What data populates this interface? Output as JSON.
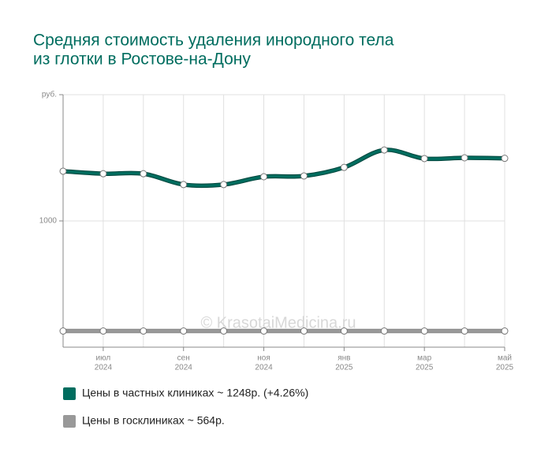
{
  "chart_data": {
    "type": "line",
    "title": [
      "Средняя стоимость удаления инородного тела",
      "из глотки в Ростове-на-Дону"
    ],
    "categories": [
      null,
      "июл",
      null,
      "сен",
      null,
      "ноя",
      null,
      "янв",
      null,
      "мар",
      null,
      "май"
    ],
    "category_years": [
      null,
      "2024",
      null,
      "2024",
      null,
      "2024",
      null,
      "2025",
      null,
      "2025",
      null,
      "2025"
    ],
    "series": [
      {
        "name": "Цены в частных клиниках ~ 1248р. (+4.26%)",
        "color": "#006d5f",
        "values": [
          1197,
          1187,
          1187,
          1144,
          1144,
          1175,
          1178,
          1212,
          1281,
          1247,
          1250,
          1248
        ]
      },
      {
        "name": "Цены в госклиниках ~ 564р.",
        "color": "#999999",
        "values": [
          564,
          564,
          564,
          564,
          564,
          564,
          564,
          564,
          564,
          564,
          564,
          564
        ]
      }
    ],
    "ylim": [
      500,
      1500
    ],
    "yticks": [
      1000,
      {
        "value": 1500,
        "label": "руб."
      }
    ],
    "grid": true,
    "watermark": "© KrasotaiMedicina.ru"
  }
}
